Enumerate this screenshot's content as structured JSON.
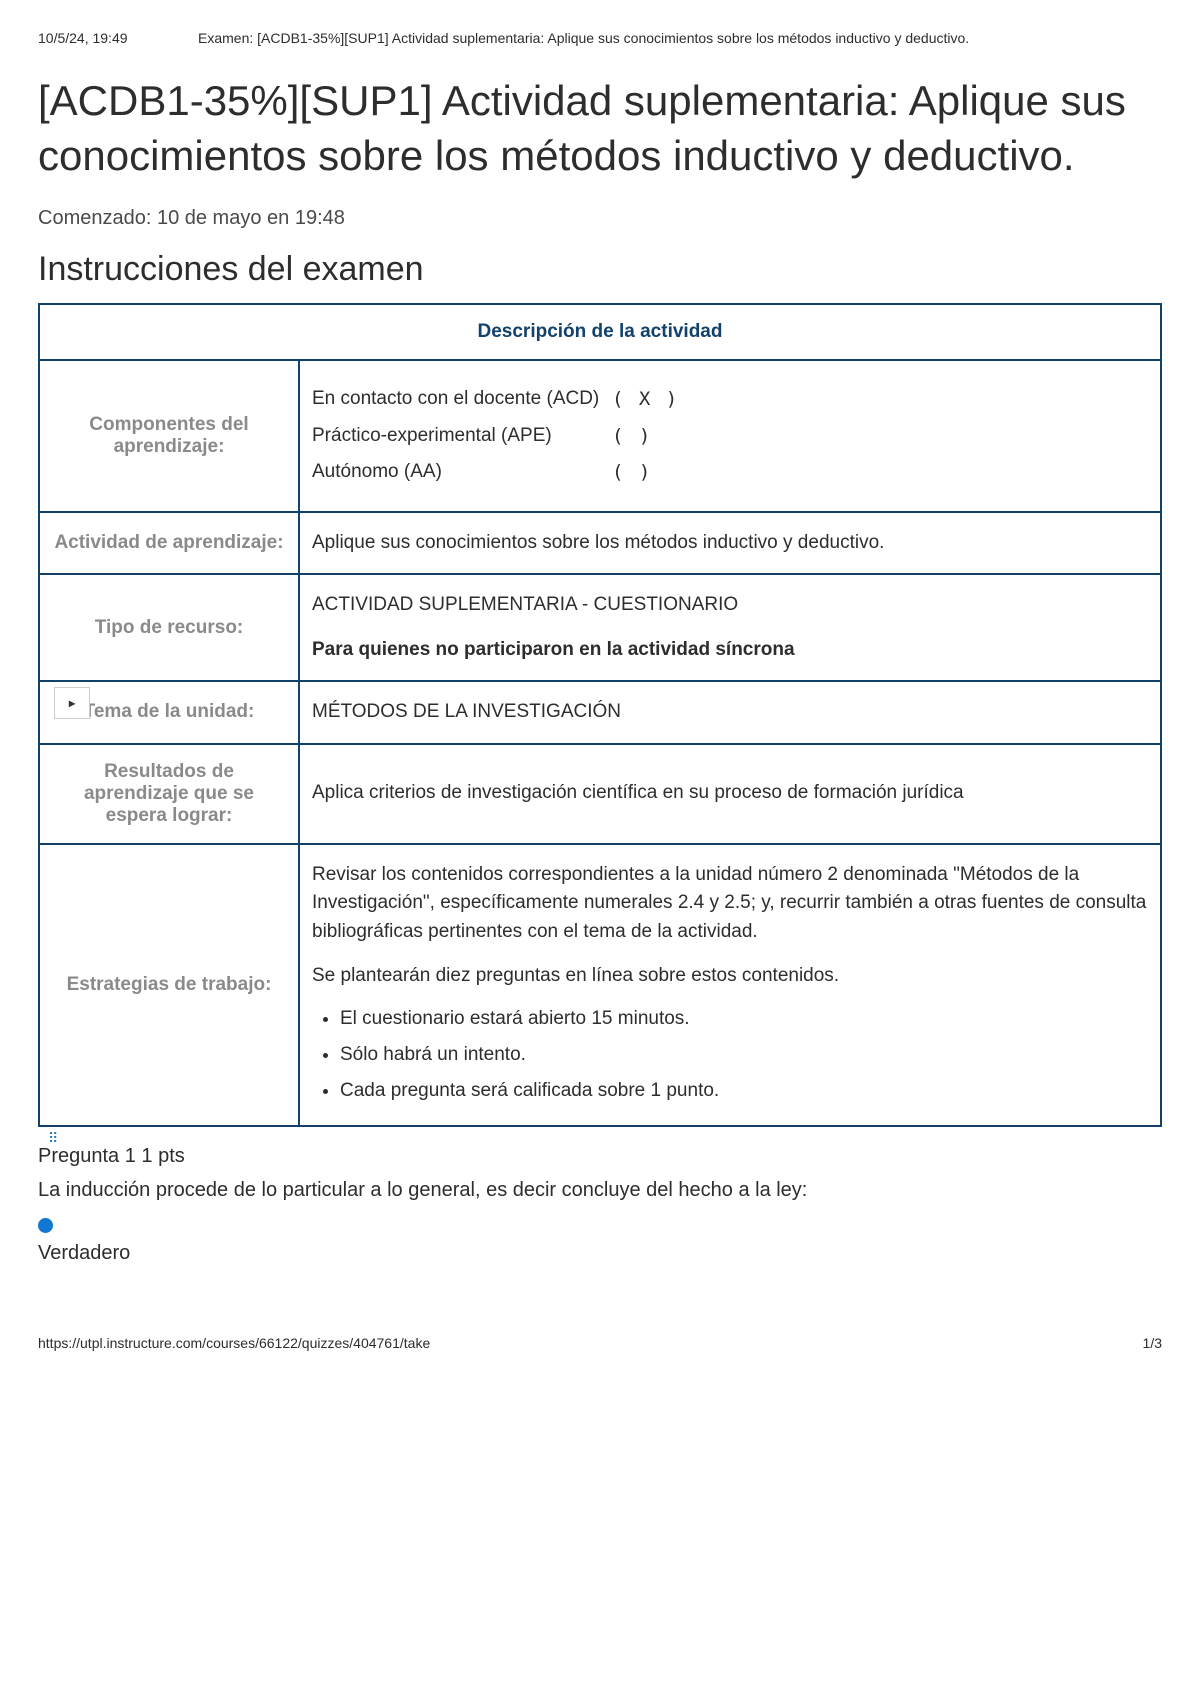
{
  "header": {
    "timestamp": "10/5/24, 19:49",
    "small_title": "Examen: [ACDB1-35%][SUP1] Actividad suplementaria: Aplique sus conocimientos sobre los métodos inductivo y deductivo."
  },
  "main_title": "[ACDB1-35%][SUP1] Actividad suplementaria: Aplique sus conocimientos sobre los métodos inductivo y deductivo.",
  "started": "Comenzado: 10 de mayo en 19:48",
  "instructions_heading": "Instrucciones del examen",
  "table": {
    "header": "Descripción de la actividad",
    "rows": {
      "componentes": {
        "label": "Componentes del aprendizaje:",
        "items": [
          {
            "name": "En contacto con el docente (ACD)",
            "mark": "(   X  )"
          },
          {
            "name": "Práctico-experimental (APE)",
            "mark": "(        )"
          },
          {
            "name": "Autónomo (AA)",
            "mark": "(        )"
          }
        ]
      },
      "actividad": {
        "label": "Actividad de aprendizaje:",
        "value": "Aplique sus conocimientos sobre los métodos inductivo y deductivo."
      },
      "tipo": {
        "label": "Tipo de recurso:",
        "line1": "ACTIVIDAD SUPLEMENTARIA - CUESTIONARIO",
        "line2": "Para quienes no participaron en la actividad síncrona"
      },
      "tema": {
        "label": "Tema de la unidad:",
        "value": "MÉTODOS DE LA INVESTIGACIÓN"
      },
      "resultados": {
        "label": "Resultados de aprendizaje que se espera lograr:",
        "value": "Aplica criterios de investigación científica en su proceso de formación jurídica"
      },
      "estrategias": {
        "label": "Estrategias de trabajo:",
        "para1": "Revisar los contenidos correspondientes a la unidad número 2 denominada \"Métodos de la Investigación\", específicamente numerales 2.4 y 2.5; y, recurrir también a otras fuentes de consulta bibliográficas pertinentes con el tema de la actividad.",
        "para2": "Se plantearán diez preguntas en línea sobre estos contenidos.",
        "bullets": [
          "El cuestionario estará abierto 15 minutos.",
          "Sólo habrá un intento.",
          "Cada pregunta será calificada sobre 1 punto."
        ]
      }
    }
  },
  "toggle_glyph": "▸",
  "question": {
    "title": "Pregunta 1 1 pts",
    "text": "La inducción procede de lo particular a lo general, es decir concluye del hecho a la ley:",
    "answer": "Verdadero"
  },
  "footer": {
    "url": "https://utpl.instructure.com/courses/66122/quizzes/404761/take",
    "page": "1/3"
  },
  "colors": {
    "border": "#12426c",
    "muted": "#8a8a8a",
    "radio": "#1177d1"
  }
}
